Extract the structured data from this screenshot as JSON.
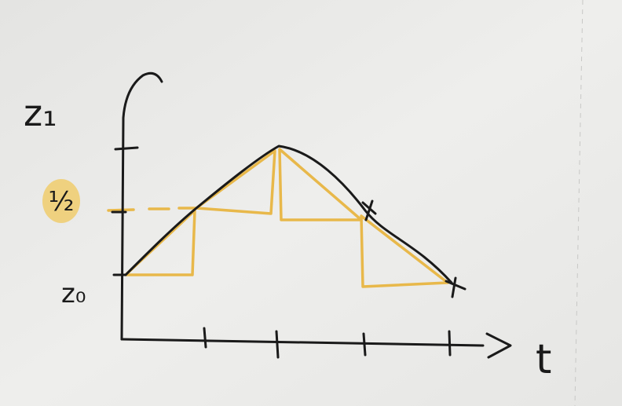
{
  "labels": {
    "y_top": "z₁",
    "y_mid": "½",
    "y_bottom": "z₀",
    "x_axis": "t"
  }
}
